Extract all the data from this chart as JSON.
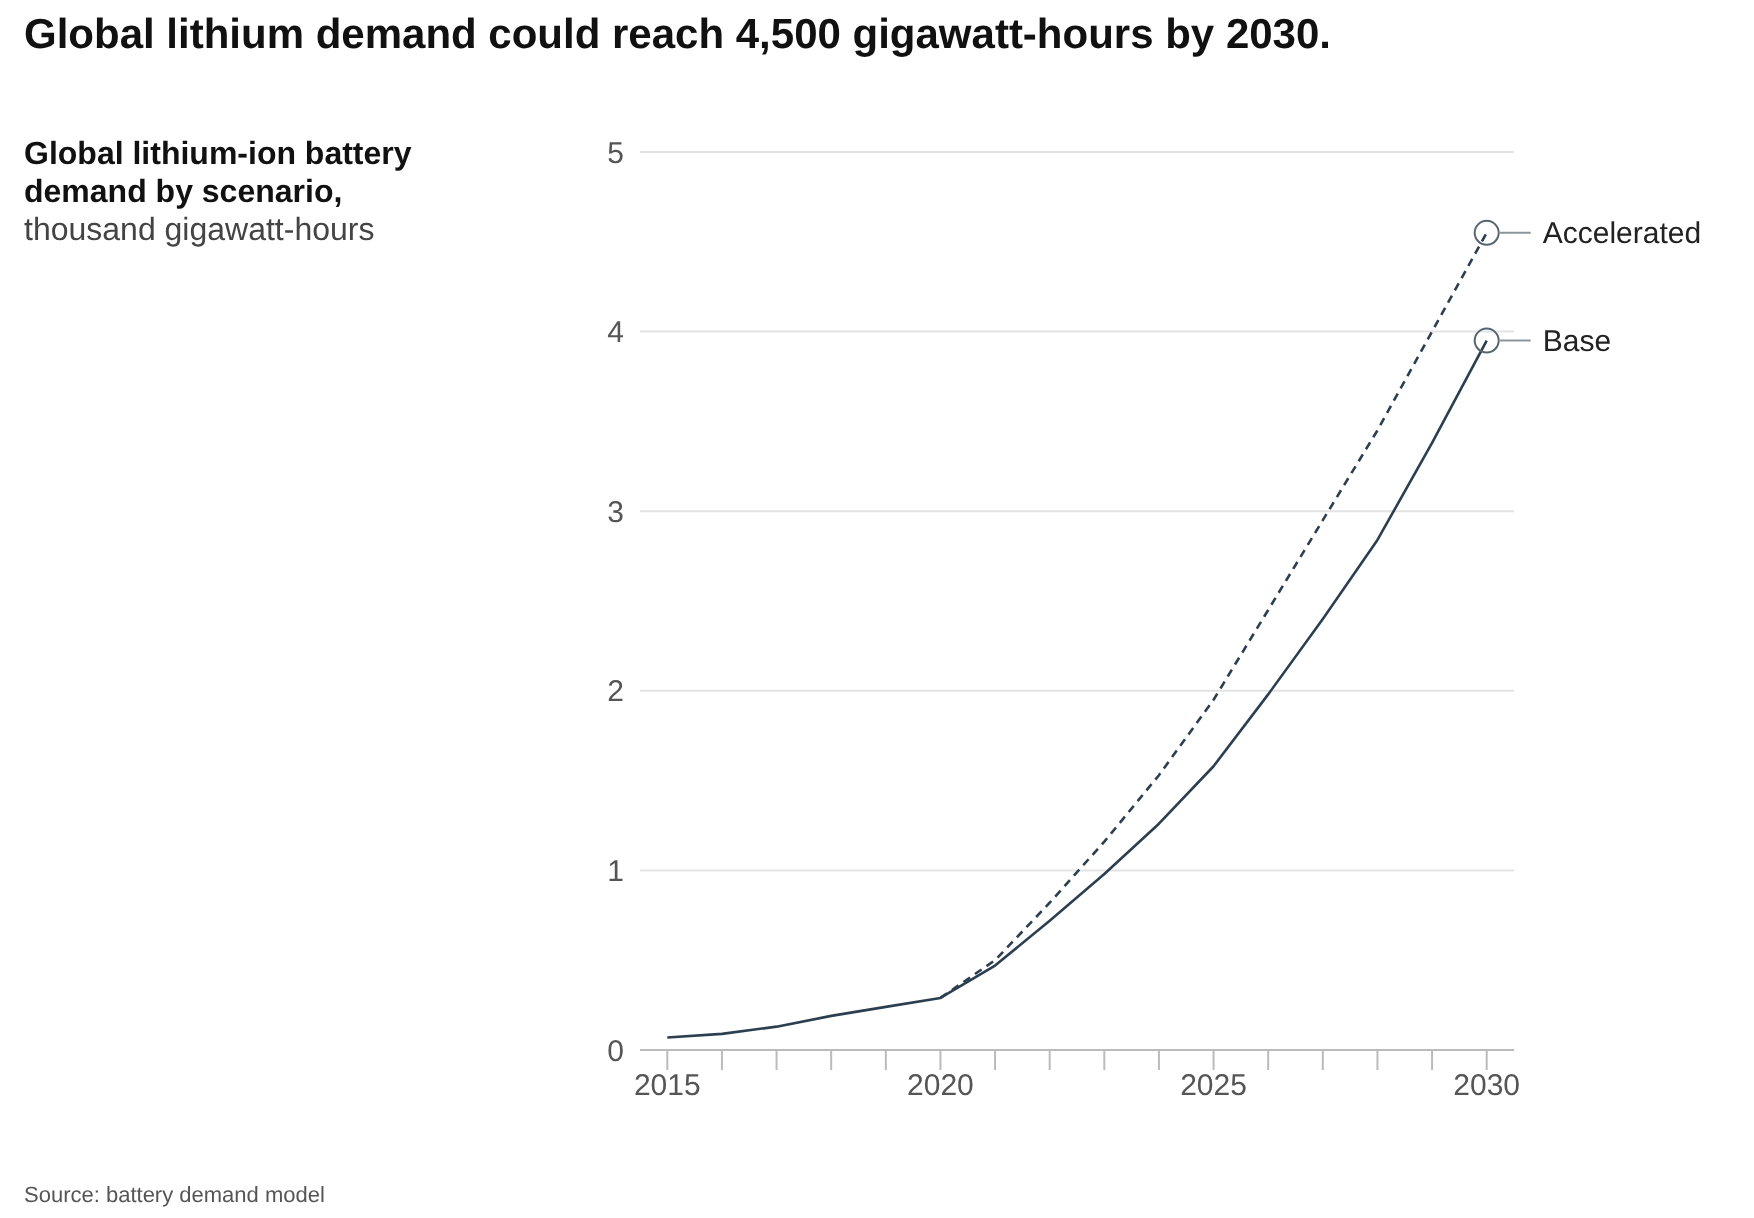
{
  "chart_data": {
    "type": "line",
    "title": "Global lithium demand could reach 4,500 gigawatt-hours by 2030.",
    "subtitle": "Global lithium-ion battery demand by scenario,",
    "x": [
      2015,
      2016,
      2017,
      2018,
      2019,
      2020,
      2021,
      2022,
      2023,
      2024,
      2025,
      2026,
      2027,
      2028,
      2029,
      2030
    ],
    "series": [
      {
        "name": "Accelerated",
        "color": "#2b3f50",
        "line_style": "dashed",
        "x": [
          2020,
          2021,
          2022,
          2023,
          2024,
          2025,
          2026,
          2027,
          2028,
          2029,
          2030
        ],
        "values": [
          0.29,
          0.5,
          0.82,
          1.16,
          1.53,
          1.95,
          2.45,
          2.95,
          3.45,
          4.0,
          4.55
        ]
      },
      {
        "name": "Base",
        "color": "#2b3f50",
        "line_style": "solid",
        "values": [
          0.07,
          0.09,
          0.13,
          0.19,
          0.24,
          0.29,
          0.47,
          0.72,
          0.98,
          1.26,
          1.58,
          1.98,
          2.4,
          2.84,
          3.38,
          3.95
        ]
      }
    ],
    "xlim": [
      2014.5,
      2030.5
    ],
    "xticks": [
      2015,
      {
        "value": 2016,
        "label": null
      },
      {
        "value": 2017,
        "label": null
      },
      {
        "value": 2018,
        "label": null
      },
      {
        "value": 2019,
        "label": null
      },
      2020,
      {
        "value": 2021,
        "label": null
      },
      {
        "value": 2022,
        "label": null
      },
      {
        "value": 2023,
        "label": null
      },
      {
        "value": 2024,
        "label": null
      },
      2025,
      {
        "value": 2026,
        "label": null
      },
      {
        "value": 2027,
        "label": null
      },
      {
        "value": 2028,
        "label": null
      },
      {
        "value": 2029,
        "label": null
      },
      2030
    ],
    "ylim": [
      0,
      5
    ],
    "yticks": [
      0,
      1,
      2,
      3,
      4,
      5
    ],
    "grid": "y",
    "marker": "none",
    "legend": false,
    "annotations": [
      "thousand gigawatt-hours",
      "Source: battery demand model"
    ]
  }
}
